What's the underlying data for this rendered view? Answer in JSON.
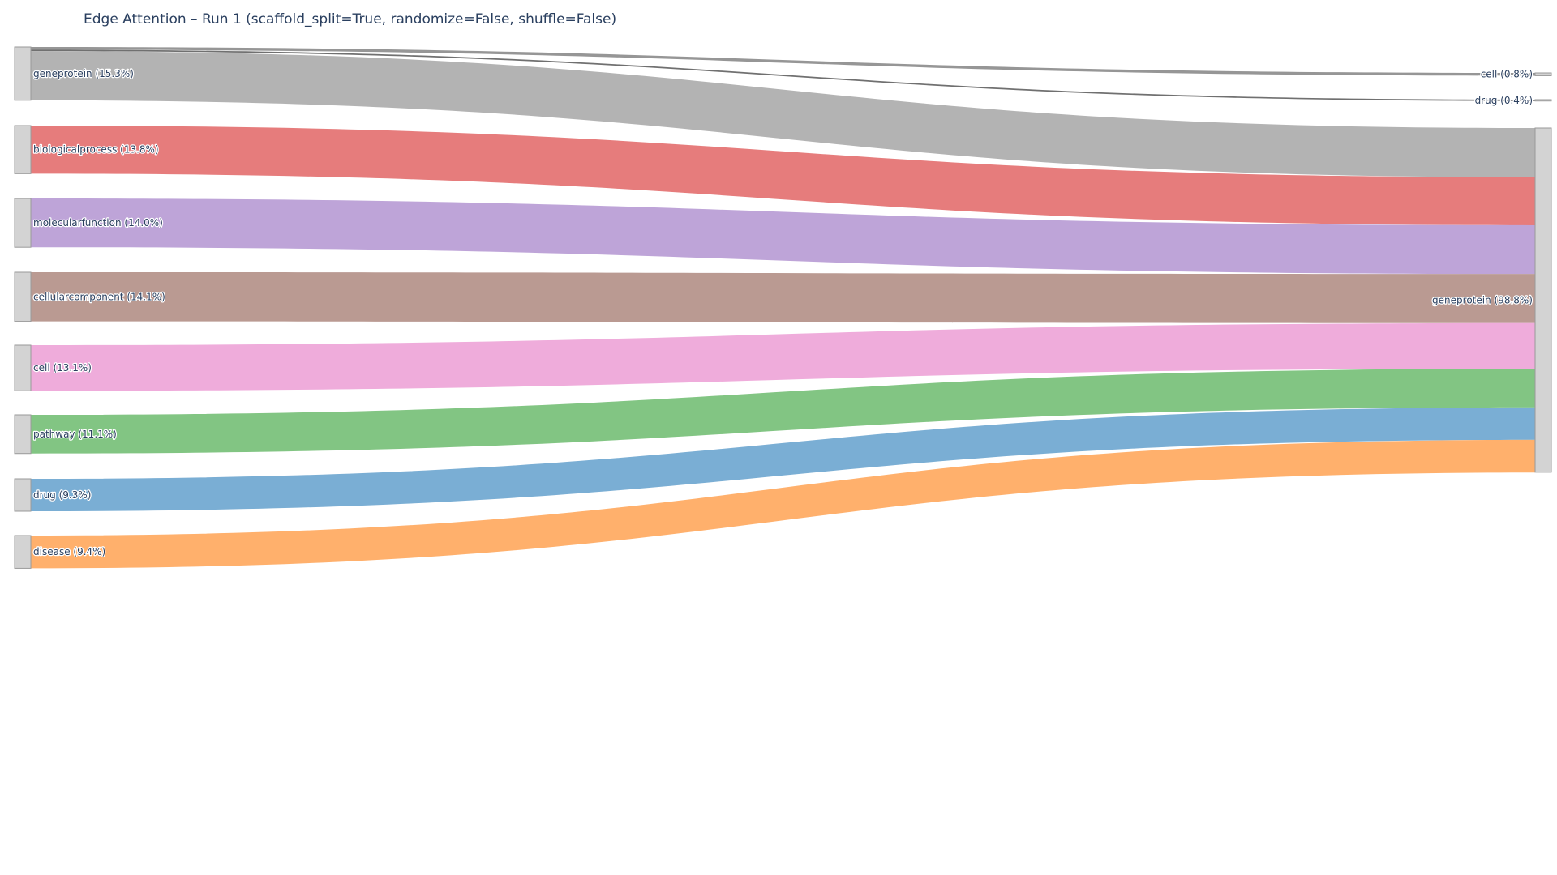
{
  "chart_data": {
    "type": "sankey",
    "title": "Edge Attention – Run 1 (scaffold_split=True, randomize=False, shuffle=False)",
    "sources": [
      {
        "name": "geneprotein",
        "label": "geneprotein (15.3%)",
        "value": 15.3
      },
      {
        "name": "biologicalprocess",
        "label": "biologicalprocess (13.8%)",
        "value": 13.8
      },
      {
        "name": "molecularfunction",
        "label": "molecularfunction (14.0%)",
        "value": 14.0
      },
      {
        "name": "cellularcomponent",
        "label": "cellularcomponent (14.1%)",
        "value": 14.1
      },
      {
        "name": "cell",
        "label": "cell (13.1%)",
        "value": 13.1
      },
      {
        "name": "pathway",
        "label": "pathway (11.1%)",
        "value": 11.1
      },
      {
        "name": "drug",
        "label": "drug (9.3%)",
        "value": 9.3
      },
      {
        "name": "disease",
        "label": "disease (9.4%)",
        "value": 9.4
      }
    ],
    "targets": [
      {
        "name": "cell",
        "label": "cell (0.8%)",
        "value": 0.8
      },
      {
        "name": "drug",
        "label": "drug (0.4%)",
        "value": 0.4
      },
      {
        "name": "geneprotein",
        "label": "geneprotein (98.8%)",
        "value": 98.8
      }
    ],
    "links": [
      {
        "source": "geneprotein",
        "target": "cell",
        "value": 0.8,
        "color": "#969696"
      },
      {
        "source": "geneprotein",
        "target": "drug",
        "value": 0.4,
        "color": "#707070"
      },
      {
        "source": "geneprotein",
        "target": "geneprotein",
        "value": 14.1,
        "color": "#b3b3b3"
      },
      {
        "source": "biologicalprocess",
        "target": "geneprotein",
        "value": 13.8,
        "color": "#e67c7c"
      },
      {
        "source": "molecularfunction",
        "target": "geneprotein",
        "value": 14.0,
        "color": "#bea4d8"
      },
      {
        "source": "cellularcomponent",
        "target": "geneprotein",
        "value": 14.1,
        "color": "#ba9a92"
      },
      {
        "source": "cell",
        "target": "geneprotein",
        "value": 13.1,
        "color": "#efacdb"
      },
      {
        "source": "pathway",
        "target": "geneprotein",
        "value": 11.1,
        "color": "#82c583"
      },
      {
        "source": "drug",
        "target": "geneprotein",
        "value": 9.3,
        "color": "#7aaed4"
      },
      {
        "source": "disease",
        "target": "geneprotein",
        "value": 9.4,
        "color": "#ffb06c"
      }
    ]
  }
}
